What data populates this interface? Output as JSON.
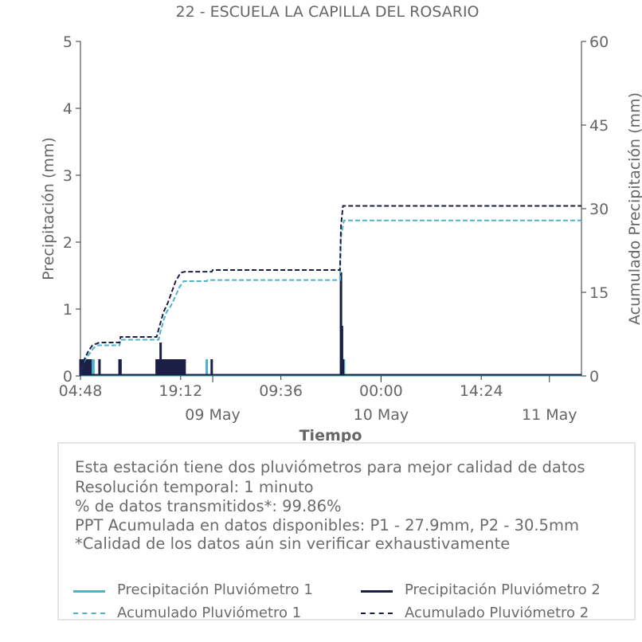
{
  "chart_data": {
    "type": "bar+line",
    "title": "22 - ESCUELA LA CAPILLA DEL ROSARIO",
    "xlabel": "Tiempo",
    "ylabel_left": "Precipitación (mm)",
    "ylabel_right": "Acumulado Precipitación (mm)",
    "ylim_left": [
      0,
      5
    ],
    "ylim_right": [
      0,
      60
    ],
    "yticks_left": [
      "0",
      "1",
      "2",
      "3",
      "4",
      "5"
    ],
    "yticks_right": [
      "0",
      "15",
      "30",
      "45",
      "60"
    ],
    "xlim_hours": [
      0,
      50
    ],
    "xticks_minor": [
      {
        "hour": 0,
        "label": "04:48"
      },
      {
        "hour": 10,
        "label": "19:12"
      },
      {
        "hour": 20,
        "label": "09:36"
      },
      {
        "hour": 30,
        "label": "00:00"
      },
      {
        "hour": 40,
        "label": "14:24"
      }
    ],
    "xticks_major": [
      {
        "hour": 13.2,
        "label": "09 May"
      },
      {
        "hour": 30,
        "label": "10 May"
      },
      {
        "hour": 46.8,
        "label": "11 May"
      }
    ],
    "series": [
      {
        "name": "Precipitación Pluviómetro 1",
        "kind": "bars",
        "color": "#4db3c8",
        "points": [
          [
            0.1,
            0.25
          ],
          [
            0.3,
            0.25
          ],
          [
            0.6,
            0.25
          ],
          [
            0.9,
            0.25
          ],
          [
            1.2,
            0.25
          ],
          [
            1.3,
            0.25
          ],
          [
            3.9,
            0.25
          ],
          [
            7.9,
            0.25
          ],
          [
            8.3,
            0.25
          ],
          [
            8.6,
            0.25
          ],
          [
            9.0,
            0.25
          ],
          [
            9.5,
            0.25
          ],
          [
            9.9,
            0.25
          ],
          [
            10.3,
            0.25
          ],
          [
            12.6,
            0.25
          ],
          [
            26.0,
            1.45
          ],
          [
            26.1,
            0.7
          ],
          [
            26.3,
            0.25
          ]
        ]
      },
      {
        "name": "Precipitación Pluviómetro 2",
        "kind": "bars",
        "color": "#1c1f45",
        "points": [
          [
            0.0,
            0.25
          ],
          [
            0.2,
            0.25
          ],
          [
            0.4,
            0.25
          ],
          [
            0.6,
            0.25
          ],
          [
            0.8,
            0.25
          ],
          [
            1.0,
            0.25
          ],
          [
            1.9,
            0.25
          ],
          [
            3.9,
            0.25
          ],
          [
            4.0,
            0.25
          ],
          [
            7.6,
            0.25
          ],
          [
            7.8,
            0.25
          ],
          [
            8.0,
            0.5
          ],
          [
            8.2,
            0.25
          ],
          [
            8.4,
            0.25
          ],
          [
            8.6,
            0.25
          ],
          [
            8.8,
            0.25
          ],
          [
            9.0,
            0.25
          ],
          [
            9.2,
            0.25
          ],
          [
            9.4,
            0.25
          ],
          [
            9.6,
            0.25
          ],
          [
            9.8,
            0.25
          ],
          [
            10.0,
            0.25
          ],
          [
            10.2,
            0.25
          ],
          [
            10.4,
            0.25
          ],
          [
            13.1,
            0.25
          ],
          [
            26.0,
            1.55
          ],
          [
            26.1,
            0.75
          ],
          [
            26.2,
            0.25
          ]
        ]
      },
      {
        "name": "Acumulado Pluviómetro 1",
        "kind": "cumulative",
        "color": "#4db3c8",
        "points": [
          [
            0,
            0
          ],
          [
            0.2,
            2
          ],
          [
            0.5,
            3
          ],
          [
            0.9,
            4
          ],
          [
            1.3,
            5
          ],
          [
            1.7,
            5.5
          ],
          [
            3.9,
            5.5
          ],
          [
            4.0,
            6.5
          ],
          [
            7.8,
            6.5
          ],
          [
            8.0,
            8
          ],
          [
            8.3,
            10
          ],
          [
            8.6,
            11.5
          ],
          [
            9.0,
            12.5
          ],
          [
            9.4,
            14
          ],
          [
            9.9,
            16
          ],
          [
            10.3,
            17
          ],
          [
            12.6,
            17
          ],
          [
            12.7,
            17.2
          ],
          [
            25.9,
            17.2
          ],
          [
            26.0,
            25
          ],
          [
            26.3,
            27.9
          ],
          [
            50,
            27.9
          ]
        ]
      },
      {
        "name": "Acumulado Pluviómetro 2",
        "kind": "cumulative",
        "color": "#1c1f45",
        "points": [
          [
            0,
            0
          ],
          [
            0.2,
            2
          ],
          [
            0.4,
            3
          ],
          [
            0.8,
            4.5
          ],
          [
            1.2,
            5.5
          ],
          [
            1.9,
            6
          ],
          [
            3.9,
            6
          ],
          [
            4.0,
            7
          ],
          [
            7.6,
            7
          ],
          [
            7.9,
            9
          ],
          [
            8.3,
            11.5
          ],
          [
            8.7,
            13
          ],
          [
            9.1,
            15
          ],
          [
            9.5,
            17
          ],
          [
            10.0,
            18.5
          ],
          [
            10.4,
            18.7
          ],
          [
            13.1,
            18.7
          ],
          [
            13.2,
            19
          ],
          [
            25.9,
            19
          ],
          [
            26.0,
            27
          ],
          [
            26.2,
            30.5
          ],
          [
            50,
            30.5
          ]
        ]
      }
    ],
    "grid": false
  },
  "info": {
    "line1": "Esta estación tiene dos pluviómetros para mejor calidad de datos",
    "line2": "Resolución temporal: 1 minuto",
    "line3": "% de datos transmitidos*: 99.86%",
    "line4": "PPT Acumulada en datos disponibles: P1 - 27.9mm, P2 - 30.5mm",
    "line5": "*Calidad de los datos aún sin verificar exhaustivamente"
  },
  "legend": {
    "p1_bar": "Precipitación Pluviómetro 1",
    "p2_bar": "Precipitación Pluviómetro 2",
    "p1_cum": "Acumulado Pluviómetro 1",
    "p2_cum": "Acumulado Pluviómetro 2"
  },
  "colors": {
    "p1": "#4db3c8",
    "p2": "#1c1f45",
    "text": "#666666"
  }
}
